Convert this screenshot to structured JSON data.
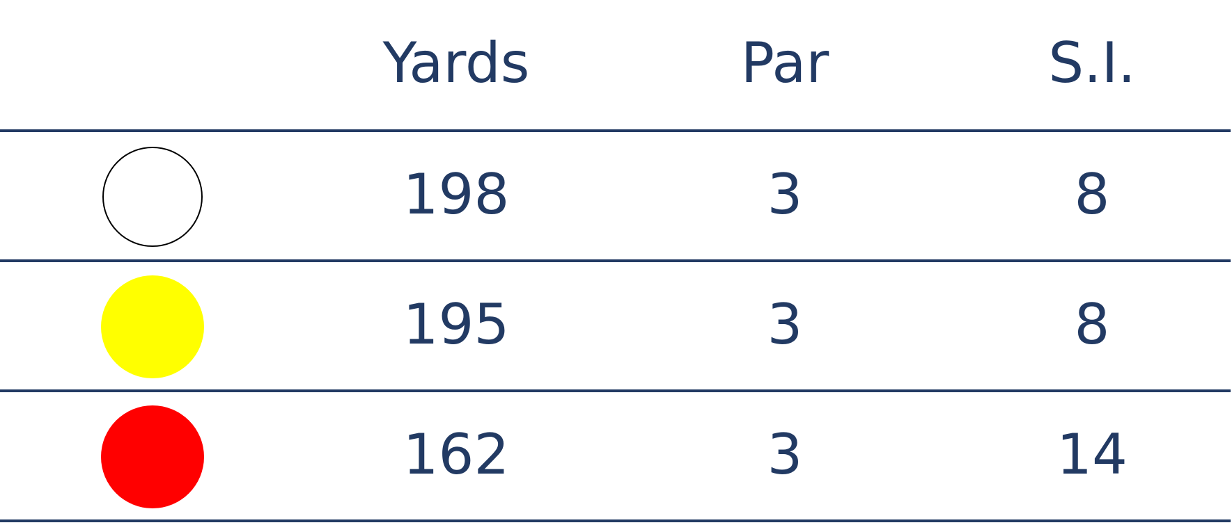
{
  "table": {
    "header": [
      "Yards",
      "Par",
      "S.I."
    ],
    "rows": [
      {
        "color": "#ffffff",
        "cells": [
          198,
          3,
          8
        ]
      },
      {
        "color": "#ffff00",
        "cells": [
          195,
          3,
          8
        ]
      },
      {
        "color": "#ff0000",
        "cells": [
          162,
          3,
          14
        ]
      }
    ]
  }
}
